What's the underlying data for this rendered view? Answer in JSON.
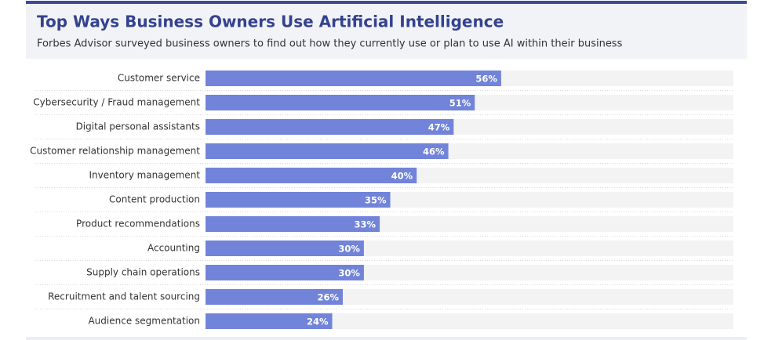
{
  "chart_data": {
    "type": "bar",
    "orientation": "horizontal",
    "title": "Top Ways Business Owners Use Artificial Intelligence",
    "subtitle": "Forbes Advisor surveyed business owners to find out how they currently use or plan to use AI within their business",
    "categories": [
      "Customer service",
      "Cybersecurity / Fraud management",
      "Digital personal assistants",
      "Customer relationship management",
      "Inventory management",
      "Content production",
      "Product recommendations",
      "Accounting",
      "Supply chain operations",
      "Recruitment and talent sourcing",
      "Audience segmentation"
    ],
    "values": [
      56,
      51,
      47,
      46,
      40,
      35,
      33,
      30,
      30,
      26,
      24
    ],
    "value_labels": [
      "56%",
      "51%",
      "47%",
      "46%",
      "40%",
      "35%",
      "33%",
      "30%",
      "30%",
      "26%",
      "24%"
    ],
    "color": "#7184d9",
    "xlim": [
      0,
      100
    ]
  }
}
